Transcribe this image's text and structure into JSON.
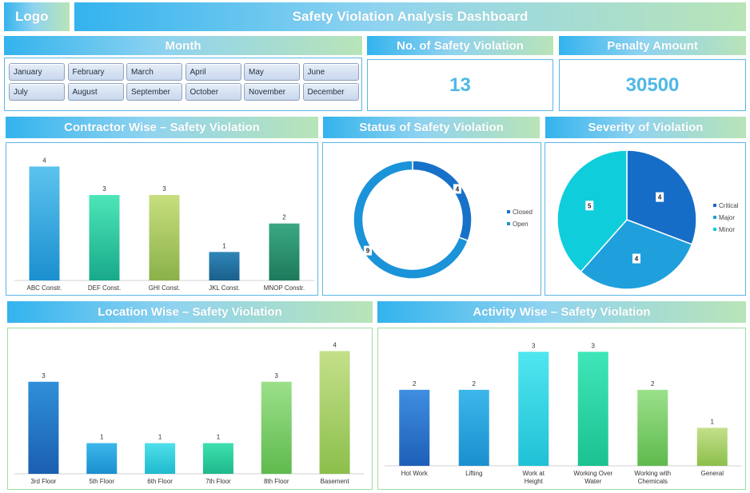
{
  "header": {
    "logo": "Logo",
    "title": "Safety Violation Analysis Dashboard"
  },
  "month": {
    "title": "Month",
    "items": [
      "January",
      "February",
      "March",
      "April",
      "May",
      "June",
      "July",
      "August",
      "September",
      "October",
      "November",
      "December"
    ]
  },
  "kpi": {
    "violations_title": "No. of Safety Violation",
    "violations_value": "13",
    "penalty_title": "Penalty Amount",
    "penalty_value": "30500"
  },
  "panels": {
    "contractor_title": "Contractor Wise – Safety Violation",
    "status_title": "Status of Safety Violation",
    "severity_title": "Severity of Violation",
    "location_title": "Location Wise – Safety Violation",
    "activity_title": "Activity Wise – Safety Violation"
  },
  "chart_data": [
    {
      "id": "contractor",
      "type": "bar",
      "categories": [
        "ABC Constr.",
        "DEF Const.",
        "GHI Const.",
        "JKL Const.",
        "MNOP Constr."
      ],
      "values": [
        4,
        3,
        3,
        1,
        2
      ],
      "colors": [
        [
          "#5cc3ee",
          "#1b8fcf"
        ],
        [
          "#4de6b8",
          "#18a98a"
        ],
        [
          "#c8df7e",
          "#8ab14a"
        ],
        [
          "#2f86b8",
          "#1a5f8c"
        ],
        [
          "#3aa882",
          "#1d7a5c"
        ]
      ],
      "ylim": [
        0,
        4.6
      ]
    },
    {
      "id": "status",
      "type": "pie",
      "donut": true,
      "labels": [
        "Closed",
        "Open"
      ],
      "values": [
        4,
        9
      ],
      "colors": [
        "#1771c9",
        "#1b93d9"
      ]
    },
    {
      "id": "severity",
      "type": "pie",
      "labels": [
        "Critical",
        "Major",
        "Minor"
      ],
      "values": [
        4,
        4,
        5
      ],
      "colors": [
        "#166dc7",
        "#1fa0dd",
        "#10cddc"
      ]
    },
    {
      "id": "location",
      "type": "bar",
      "categories": [
        "3rd Floor",
        "5th Floor",
        "6th Floor",
        "7th Floor",
        "8th Floor",
        "Basement"
      ],
      "values": [
        3,
        1,
        1,
        1,
        3,
        4
      ],
      "colors": [
        [
          "#2f8fd8",
          "#1b5fb0"
        ],
        [
          "#3cb7ea",
          "#1a8fcf"
        ],
        [
          "#4fe0ea",
          "#20b9cf"
        ],
        [
          "#3fe0b0",
          "#1eb98c"
        ],
        [
          "#9be08a",
          "#5fba4d"
        ],
        [
          "#c4e08a",
          "#8cbf4c"
        ]
      ],
      "ylim": [
        0,
        4.4
      ]
    },
    {
      "id": "activity",
      "type": "bar",
      "categories": [
        "Hot Work",
        "Lifting",
        "Work at Height",
        "Working Over Water",
        "Working with Chemicals",
        "General"
      ],
      "values": [
        2,
        2,
        3,
        3,
        2,
        1
      ],
      "colors": [
        [
          "#3f8ee0",
          "#1d5fb8"
        ],
        [
          "#3cb7ea",
          "#1a8fcf"
        ],
        [
          "#4fe6ef",
          "#20c1d6"
        ],
        [
          "#3fe6b8",
          "#1cc191"
        ],
        [
          "#9be08a",
          "#5fba4d"
        ],
        [
          "#c4e08a",
          "#8cbf4c"
        ]
      ],
      "ylim": [
        0,
        3.3
      ]
    }
  ]
}
